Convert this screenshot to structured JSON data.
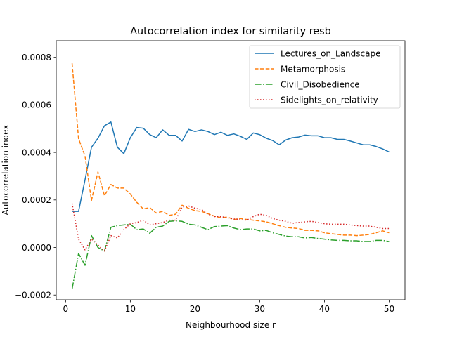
{
  "chart_data": {
    "type": "line",
    "title": "Autocorrelation index for similarity resb",
    "xlabel": "Neighbourhood size r",
    "ylabel": "Autocorrelation index",
    "xlim": [
      -1.45,
      52.45
    ],
    "ylim": [
      -0.00022,
      0.00087
    ],
    "xticks": [
      0,
      10,
      20,
      30,
      40,
      50
    ],
    "xtick_labels": [
      "0",
      "10",
      "20",
      "30",
      "40",
      "50"
    ],
    "yticks": [
      -0.0002,
      0.0,
      0.0002,
      0.0004,
      0.0006,
      0.0008
    ],
    "ytick_labels": [
      "−0.0002",
      "0.0000",
      "0.0002",
      "0.0004",
      "0.0006",
      "0.0008"
    ],
    "grid": false,
    "legend_position": "top-right",
    "x": [
      1,
      2,
      3,
      4,
      5,
      6,
      7,
      8,
      9,
      10,
      11,
      12,
      13,
      14,
      15,
      16,
      17,
      18,
      19,
      20,
      21,
      22,
      23,
      24,
      25,
      26,
      27,
      28,
      29,
      30,
      31,
      32,
      33,
      34,
      35,
      36,
      37,
      38,
      39,
      40,
      41,
      42,
      43,
      44,
      45,
      46,
      47,
      48,
      49,
      50
    ],
    "series": [
      {
        "name": "Lectures_on_Landscape",
        "color": "#1f77b4",
        "dash": "solid",
        "values": [
          0.000152,
          0.000152,
          0.000285,
          0.000422,
          0.00046,
          0.000512,
          0.000528,
          0.000422,
          0.000395,
          0.000462,
          0.000505,
          0.000502,
          0.000475,
          0.000462,
          0.000495,
          0.000472,
          0.000472,
          0.000448,
          0.000497,
          0.000488,
          0.000495,
          0.000488,
          0.000475,
          0.000485,
          0.000472,
          0.000478,
          0.000468,
          0.000455,
          0.000482,
          0.000475,
          0.00046,
          0.00045,
          0.000432,
          0.000452,
          0.000462,
          0.000465,
          0.000473,
          0.00047,
          0.00047,
          0.000462,
          0.000462,
          0.000455,
          0.000455,
          0.000448,
          0.00044,
          0.000432,
          0.000432,
          0.000425,
          0.000415,
          0.000402
        ]
      },
      {
        "name": "Metamorphosis",
        "color": "#ff7f0e",
        "dash": "dashed",
        "values": [
          0.000775,
          0.000458,
          0.000385,
          0.000198,
          0.000318,
          0.000218,
          0.000265,
          0.00025,
          0.00025,
          0.000225,
          0.00019,
          0.000162,
          0.000168,
          0.000145,
          0.000152,
          0.000135,
          0.00014,
          0.000178,
          0.000165,
          0.000155,
          0.000152,
          0.000142,
          0.000132,
          0.000125,
          0.000128,
          0.000118,
          0.000122,
          0.000118,
          0.000115,
          0.000112,
          0.000108,
          0.0001,
          9.2e-05,
          8.5e-05,
          8.2e-05,
          8e-05,
          7.2e-05,
          7.2e-05,
          7e-05,
          6.2e-05,
          5.8e-05,
          5.5e-05,
          5.2e-05,
          5.2e-05,
          5e-05,
          5.2e-05,
          5.5e-05,
          6.2e-05,
          7e-05,
          6.2e-05
        ]
      },
      {
        "name": "Civil_Disobedience",
        "color": "#2ca02c",
        "dash": "dashdot",
        "values": [
          -0.000175,
          -2.5e-05,
          -7.5e-05,
          5e-05,
          0.0,
          -1.5e-05,
          8.5e-05,
          9.2e-05,
          9.5e-05,
          9.8e-05,
          7.5e-05,
          7.8e-05,
          6e-05,
          8.5e-05,
          9e-05,
          0.00011,
          0.000112,
          0.00011,
          9.8e-05,
          9.5e-05,
          8.5e-05,
          7.5e-05,
          8.8e-05,
          9e-05,
          9.2e-05,
          8.2e-05,
          7.5e-05,
          7.8e-05,
          7.8e-05,
          7e-05,
          7.2e-05,
          6.2e-05,
          5.5e-05,
          4.8e-05,
          4.5e-05,
          4.5e-05,
          4e-05,
          4.2e-05,
          3.8e-05,
          3.5e-05,
          3.2e-05,
          3e-05,
          3e-05,
          2.8e-05,
          2.8e-05,
          2.5e-05,
          2.5e-05,
          3e-05,
          3e-05,
          2.5e-05
        ]
      },
      {
        "name": "Sidelights_on_relativity",
        "color": "#d62728",
        "dash": "dotted",
        "values": [
          0.000185,
          3.5e-05,
          -1e-05,
          3.5e-05,
          1e-05,
          -1.5e-05,
          5e-05,
          4e-05,
          7.5e-05,
          0.0001,
          0.000105,
          0.000115,
          9.5e-05,
          0.0001,
          0.000105,
          0.000115,
          0.000115,
          0.00017,
          0.000175,
          0.000165,
          0.00016,
          0.00014,
          0.00013,
          0.00013,
          0.000125,
          0.00012,
          0.000118,
          0.000115,
          0.00013,
          0.00014,
          0.000135,
          0.000122,
          0.000115,
          0.00011,
          0.000102,
          0.000105,
          0.000108,
          0.00011,
          0.000105,
          0.0001,
          9.8e-05,
          9.8e-05,
          9.8e-05,
          9.5e-05,
          9.2e-05,
          9e-05,
          9e-05,
          8.5e-05,
          8e-05,
          8e-05
        ]
      }
    ]
  }
}
